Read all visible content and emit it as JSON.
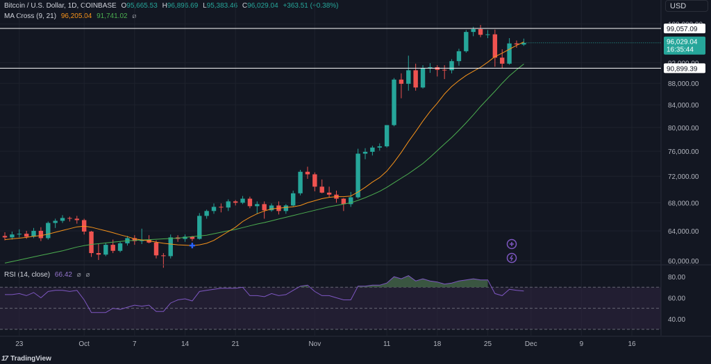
{
  "header": {
    "symbol_title": "Bitcoin / U.S. Dollar, 1D, COINBASE",
    "o_label": "O",
    "o_value": "95,665.53",
    "h_label": "H",
    "h_value": "96,896.69",
    "l_label": "L",
    "l_value": "95,383.46",
    "c_label": "C",
    "c_value": "96,029.04",
    "change": "+363.51 (+0.38%)",
    "ma_title": "MA Cross (9, 21)",
    "ma_fast_value": "96,205.04",
    "ma_slow_value": "91,741.02",
    "ma_icon": "eye-off-icon",
    "rsi_title": "RSI (14, close)",
    "rsi_value": "66.42",
    "rsi_icons": [
      "eye-off-icon",
      "eye-off-icon"
    ]
  },
  "currency": "USD",
  "price_tags": {
    "current_price": "96,029.04",
    "countdown": "16:35:44"
  },
  "horizontal_lines": [
    {
      "value": 99057.09,
      "label": "99,057.09"
    },
    {
      "value": 90899.39,
      "label": "90,899.39"
    }
  ],
  "floating_icons": [
    "crosshair-plus-icon",
    "lightning-icon"
  ],
  "branding": {
    "logo_text": "TradingView",
    "logo_mark": "17"
  },
  "colors": {
    "background": "#131722",
    "up": "#26a69a",
    "down": "#ef5350",
    "ma_fast": "#f7931a",
    "ma_slow": "#4caf50",
    "rsi_line": "#7e57c2",
    "rsi_fill": "#2f2540",
    "rsi_overbought_fill": "#3f5d45",
    "hline": "#ffffff",
    "grid": "#1e222d"
  },
  "chart_data": [
    {
      "type": "candlestick",
      "title": "Bitcoin / U.S. Dollar, 1D, COINBASE",
      "x_tick_labels": [
        "23",
        "Oct",
        "7",
        "14",
        "21",
        "Nov",
        "11",
        "18",
        "25",
        "Dec",
        "9",
        "16"
      ],
      "y_tick_labels": [
        "100,000.00",
        "92,000.00",
        "88,000.00",
        "84,000.00",
        "80,000.00",
        "76,000.00",
        "72,000.00",
        "68,000.00",
        "64,000.00",
        "60,000.00"
      ],
      "y_scale": "log",
      "ylim": [
        58500,
        101000
      ],
      "grid": true,
      "series": [
        {
          "name": "BTCUSD",
          "candles": [
            {
              "o": 63300,
              "h": 63800,
              "l": 62700,
              "c": 63100
            },
            {
              "o": 63100,
              "h": 63900,
              "l": 62800,
              "c": 63500
            },
            {
              "o": 63500,
              "h": 64200,
              "l": 63100,
              "c": 63600
            },
            {
              "o": 63600,
              "h": 64000,
              "l": 62900,
              "c": 63200
            },
            {
              "o": 63200,
              "h": 64400,
              "l": 63000,
              "c": 64000
            },
            {
              "o": 64000,
              "h": 64500,
              "l": 62600,
              "c": 63000
            },
            {
              "o": 63000,
              "h": 65300,
              "l": 62800,
              "c": 65100
            },
            {
              "o": 65100,
              "h": 65700,
              "l": 64400,
              "c": 65400
            },
            {
              "o": 65400,
              "h": 66200,
              "l": 65100,
              "c": 65800
            },
            {
              "o": 65800,
              "h": 66000,
              "l": 65300,
              "c": 65700
            },
            {
              "o": 65700,
              "h": 66100,
              "l": 65000,
              "c": 65500
            },
            {
              "o": 65500,
              "h": 65700,
              "l": 63500,
              "c": 63900
            },
            {
              "o": 63900,
              "h": 64000,
              "l": 60500,
              "c": 61000
            },
            {
              "o": 61000,
              "h": 62200,
              "l": 60100,
              "c": 60800
            },
            {
              "o": 60800,
              "h": 62400,
              "l": 60600,
              "c": 62100
            },
            {
              "o": 62100,
              "h": 62800,
              "l": 61000,
              "c": 61300
            },
            {
              "o": 61300,
              "h": 62500,
              "l": 61100,
              "c": 62300
            },
            {
              "o": 62300,
              "h": 63300,
              "l": 62000,
              "c": 63000
            },
            {
              "o": 63000,
              "h": 63400,
              "l": 62100,
              "c": 62600
            },
            {
              "o": 62600,
              "h": 64300,
              "l": 62200,
              "c": 62800
            },
            {
              "o": 62800,
              "h": 63400,
              "l": 62300,
              "c": 62400
            },
            {
              "o": 62400,
              "h": 62700,
              "l": 60300,
              "c": 60700
            },
            {
              "o": 60700,
              "h": 61000,
              "l": 59100,
              "c": 60600
            },
            {
              "o": 60600,
              "h": 63500,
              "l": 60300,
              "c": 63100
            },
            {
              "o": 63100,
              "h": 63400,
              "l": 62500,
              "c": 62900
            },
            {
              "o": 62900,
              "h": 63500,
              "l": 62500,
              "c": 63200
            },
            {
              "o": 63200,
              "h": 63300,
              "l": 62600,
              "c": 62900
            },
            {
              "o": 62900,
              "h": 66500,
              "l": 62800,
              "c": 66100
            },
            {
              "o": 66100,
              "h": 67000,
              "l": 65700,
              "c": 66800
            },
            {
              "o": 66800,
              "h": 67900,
              "l": 66400,
              "c": 67400
            },
            {
              "o": 67400,
              "h": 67900,
              "l": 66600,
              "c": 67300
            },
            {
              "o": 67300,
              "h": 68500,
              "l": 66800,
              "c": 68200
            },
            {
              "o": 68200,
              "h": 68400,
              "l": 67600,
              "c": 68000
            },
            {
              "o": 68000,
              "h": 69000,
              "l": 67800,
              "c": 68600
            },
            {
              "o": 68600,
              "h": 68900,
              "l": 67200,
              "c": 67500
            },
            {
              "o": 67500,
              "h": 68200,
              "l": 66400,
              "c": 67800
            },
            {
              "o": 67800,
              "h": 68200,
              "l": 65700,
              "c": 66900
            },
            {
              "o": 66900,
              "h": 67900,
              "l": 66700,
              "c": 67600
            },
            {
              "o": 67600,
              "h": 68200,
              "l": 66300,
              "c": 66800
            },
            {
              "o": 66800,
              "h": 67800,
              "l": 66400,
              "c": 67600
            },
            {
              "o": 67600,
              "h": 69800,
              "l": 67400,
              "c": 69400
            },
            {
              "o": 69400,
              "h": 73000,
              "l": 69100,
              "c": 72700
            },
            {
              "o": 72700,
              "h": 73500,
              "l": 71600,
              "c": 72300
            },
            {
              "o": 72300,
              "h": 72600,
              "l": 69700,
              "c": 70400
            },
            {
              "o": 70400,
              "h": 71500,
              "l": 69400,
              "c": 69500
            },
            {
              "o": 69500,
              "h": 70400,
              "l": 68800,
              "c": 69200
            },
            {
              "o": 69200,
              "h": 69800,
              "l": 68000,
              "c": 68600
            },
            {
              "o": 68600,
              "h": 68700,
              "l": 66800,
              "c": 67800
            },
            {
              "o": 67800,
              "h": 69600,
              "l": 67400,
              "c": 68800
            },
            {
              "o": 68800,
              "h": 76400,
              "l": 68600,
              "c": 75600
            },
            {
              "o": 75600,
              "h": 76500,
              "l": 74700,
              "c": 75900
            },
            {
              "o": 75900,
              "h": 76900,
              "l": 75300,
              "c": 76600
            },
            {
              "o": 76600,
              "h": 77300,
              "l": 76100,
              "c": 76800
            },
            {
              "o": 76800,
              "h": 80400,
              "l": 76600,
              "c": 80400
            },
            {
              "o": 80400,
              "h": 89000,
              "l": 80200,
              "c": 88700
            },
            {
              "o": 88700,
              "h": 89900,
              "l": 85200,
              "c": 87900
            },
            {
              "o": 87900,
              "h": 93400,
              "l": 86600,
              "c": 90500
            },
            {
              "o": 90500,
              "h": 91800,
              "l": 86600,
              "c": 87200
            },
            {
              "o": 87200,
              "h": 91500,
              "l": 87000,
              "c": 90900
            },
            {
              "o": 90900,
              "h": 91900,
              "l": 90000,
              "c": 91100
            },
            {
              "o": 91100,
              "h": 91500,
              "l": 89300,
              "c": 90600
            },
            {
              "o": 90600,
              "h": 91500,
              "l": 88800,
              "c": 90500
            },
            {
              "o": 90500,
              "h": 92700,
              "l": 89900,
              "c": 92300
            },
            {
              "o": 92300,
              "h": 94800,
              "l": 91400,
              "c": 94300
            },
            {
              "o": 94300,
              "h": 98700,
              "l": 94000,
              "c": 98300
            },
            {
              "o": 98300,
              "h": 99400,
              "l": 97400,
              "c": 98900
            },
            {
              "o": 98900,
              "h": 99800,
              "l": 97200,
              "c": 97700
            },
            {
              "o": 97700,
              "h": 98700,
              "l": 97000,
              "c": 97800
            },
            {
              "o": 97800,
              "h": 98800,
              "l": 91200,
              "c": 93000
            },
            {
              "o": 93000,
              "h": 94700,
              "l": 90900,
              "c": 91800
            },
            {
              "o": 91800,
              "h": 97000,
              "l": 91600,
              "c": 95900
            },
            {
              "o": 95900,
              "h": 96500,
              "l": 95000,
              "c": 95700
            },
            {
              "o": 95665.53,
              "h": 96896.69,
              "l": 95383.46,
              "c": 96029.04
            }
          ]
        },
        {
          "name": "MA 9",
          "values": [
            62800,
            62900,
            63000,
            63100,
            63250,
            63350,
            63550,
            63800,
            64050,
            64300,
            64550,
            64650,
            64500,
            64250,
            64000,
            63750,
            63450,
            63200,
            62900,
            62750,
            62650,
            62450,
            62300,
            62200,
            62100,
            62050,
            62000,
            62100,
            62300,
            62700,
            63300,
            63900,
            64500,
            65300,
            65900,
            66400,
            66800,
            67100,
            67200,
            67300,
            67400,
            67600,
            68000,
            68300,
            68600,
            68800,
            68900,
            68900,
            69000,
            69600,
            70300,
            71100,
            71800,
            72800,
            74200,
            75800,
            77600,
            79300,
            81100,
            82800,
            84300,
            86000,
            87400,
            88500,
            89500,
            90300,
            91100,
            92100,
            93200,
            93900,
            94700,
            95500,
            96205.04
          ]
        },
        {
          "name": "MA 21",
          "values": [
            59700,
            59900,
            60100,
            60300,
            60500,
            60700,
            60900,
            61100,
            61300,
            61550,
            61800,
            62000,
            62150,
            62250,
            62350,
            62450,
            62550,
            62650,
            62700,
            62750,
            62800,
            62850,
            62900,
            62950,
            63000,
            63100,
            63200,
            63300,
            63400,
            63600,
            63800,
            64000,
            64200,
            64450,
            64700,
            64950,
            65150,
            65400,
            65650,
            65900,
            66150,
            66400,
            66650,
            66900,
            67150,
            67400,
            67600,
            67800,
            68000,
            68350,
            68750,
            69200,
            69700,
            70300,
            71000,
            71700,
            72400,
            73200,
            74000,
            75000,
            76100,
            77200,
            78300,
            79500,
            80800,
            82200,
            83700,
            85100,
            86500,
            88000,
            89400,
            90600,
            91741.02
          ]
        }
      ]
    },
    {
      "type": "line",
      "title": "RSI (14, close)",
      "y_tick_labels": [
        "80.00",
        "60.00",
        "40.00"
      ],
      "ylim": [
        30,
        86
      ],
      "bands": [
        30,
        50,
        70
      ],
      "series": [
        {
          "name": "RSI",
          "values": [
            63,
            63,
            64,
            62,
            65,
            60,
            66,
            67,
            67,
            66,
            67,
            58,
            46,
            46,
            46,
            50,
            49,
            51,
            53,
            52,
            53,
            47,
            47,
            55,
            58,
            59,
            57,
            66,
            67,
            68,
            69,
            69,
            69,
            70,
            62,
            62,
            61,
            64,
            62,
            63,
            67,
            71,
            72,
            66,
            62,
            62,
            60,
            58,
            58,
            71,
            71,
            72,
            72,
            74,
            80,
            78,
            81,
            76,
            78,
            76,
            75,
            73,
            74,
            76,
            77,
            78,
            77,
            77,
            64,
            62,
            68,
            67,
            66.42
          ]
        }
      ]
    }
  ]
}
